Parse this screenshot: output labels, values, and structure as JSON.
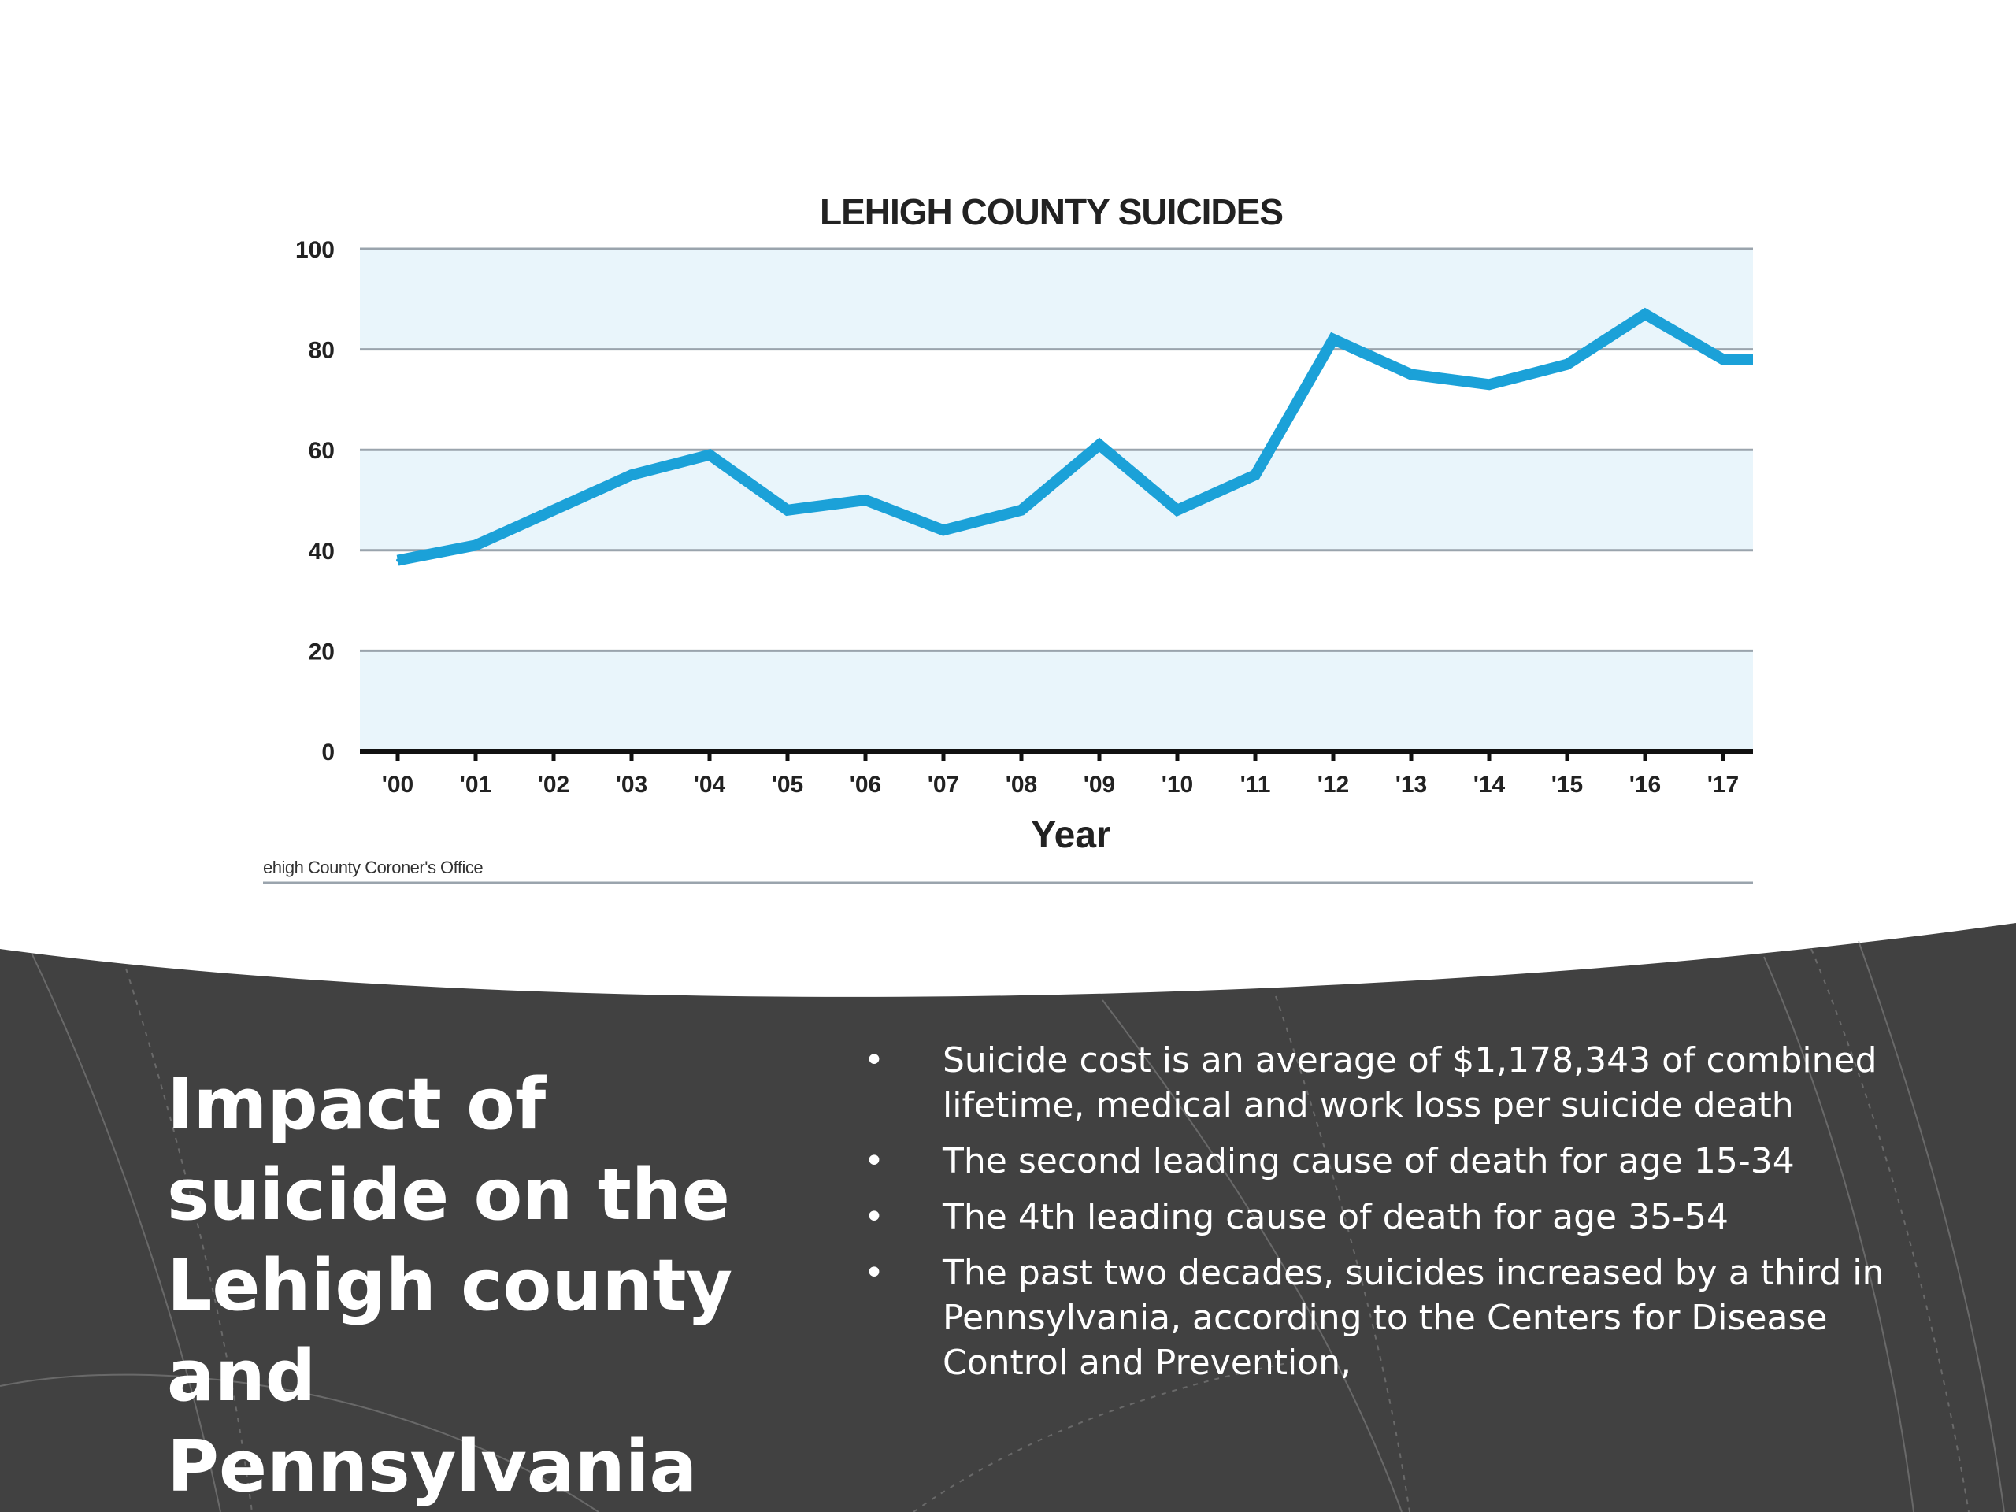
{
  "slide": {
    "title": "Impact of suicide on the Lehigh county and Pennsylvania",
    "bullets": [
      "Suicide cost is an average of  $1,178,343 of combined lifetime, medical and work loss per suicide death",
      "The second leading cause of death for age 15-34",
      "The 4th leading cause of death for age 35-54",
      "The past two decades, suicides increased by a third in Pennsylvania, according to the Centers for Disease Control and Prevention,"
    ],
    "bullet_glyph": "•",
    "colors": {
      "panel": "#414141",
      "text": "#ffffff",
      "background": "#ffffff"
    }
  },
  "chart_data": {
    "type": "line",
    "title": "LEHIGH COUNTY SUICIDES",
    "xlabel": "Year",
    "ylabel": "",
    "source": "ehigh County Coroner's Office",
    "categories": [
      "'00",
      "'01",
      "'02",
      "'03",
      "'04",
      "'05",
      "'06",
      "'07",
      "'08",
      "'09",
      "'10",
      "'11",
      "'12",
      "'13",
      "'14",
      "'15",
      "'16",
      "'17"
    ],
    "series": [
      {
        "values": [
          38,
          41,
          48,
          55,
          59,
          48,
          50,
          44,
          48,
          61,
          48,
          55,
          82,
          75,
          73,
          77,
          87,
          78
        ]
      }
    ],
    "ylim": [
      0,
      100
    ],
    "yticks": [
      0,
      20,
      40,
      60,
      80,
      100
    ],
    "grid": true,
    "legend": "none",
    "colors": {
      "line": "#1ba1d8",
      "band": "#e9f5fb",
      "grid": "#9aa4ad",
      "axis": "#111111"
    }
  }
}
